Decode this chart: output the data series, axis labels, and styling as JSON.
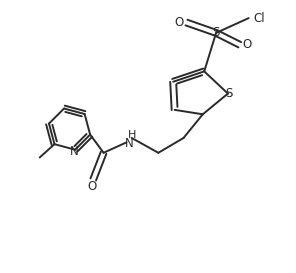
{
  "background_color": "#ffffff",
  "line_color": "#2a2a2a",
  "line_width": 1.4,
  "font_size": 8.5,
  "figsize": [
    2.96,
    2.73
  ],
  "dpi": 100,
  "xlim": [
    0,
    10
  ],
  "ylim": [
    0,
    9.2
  ]
}
